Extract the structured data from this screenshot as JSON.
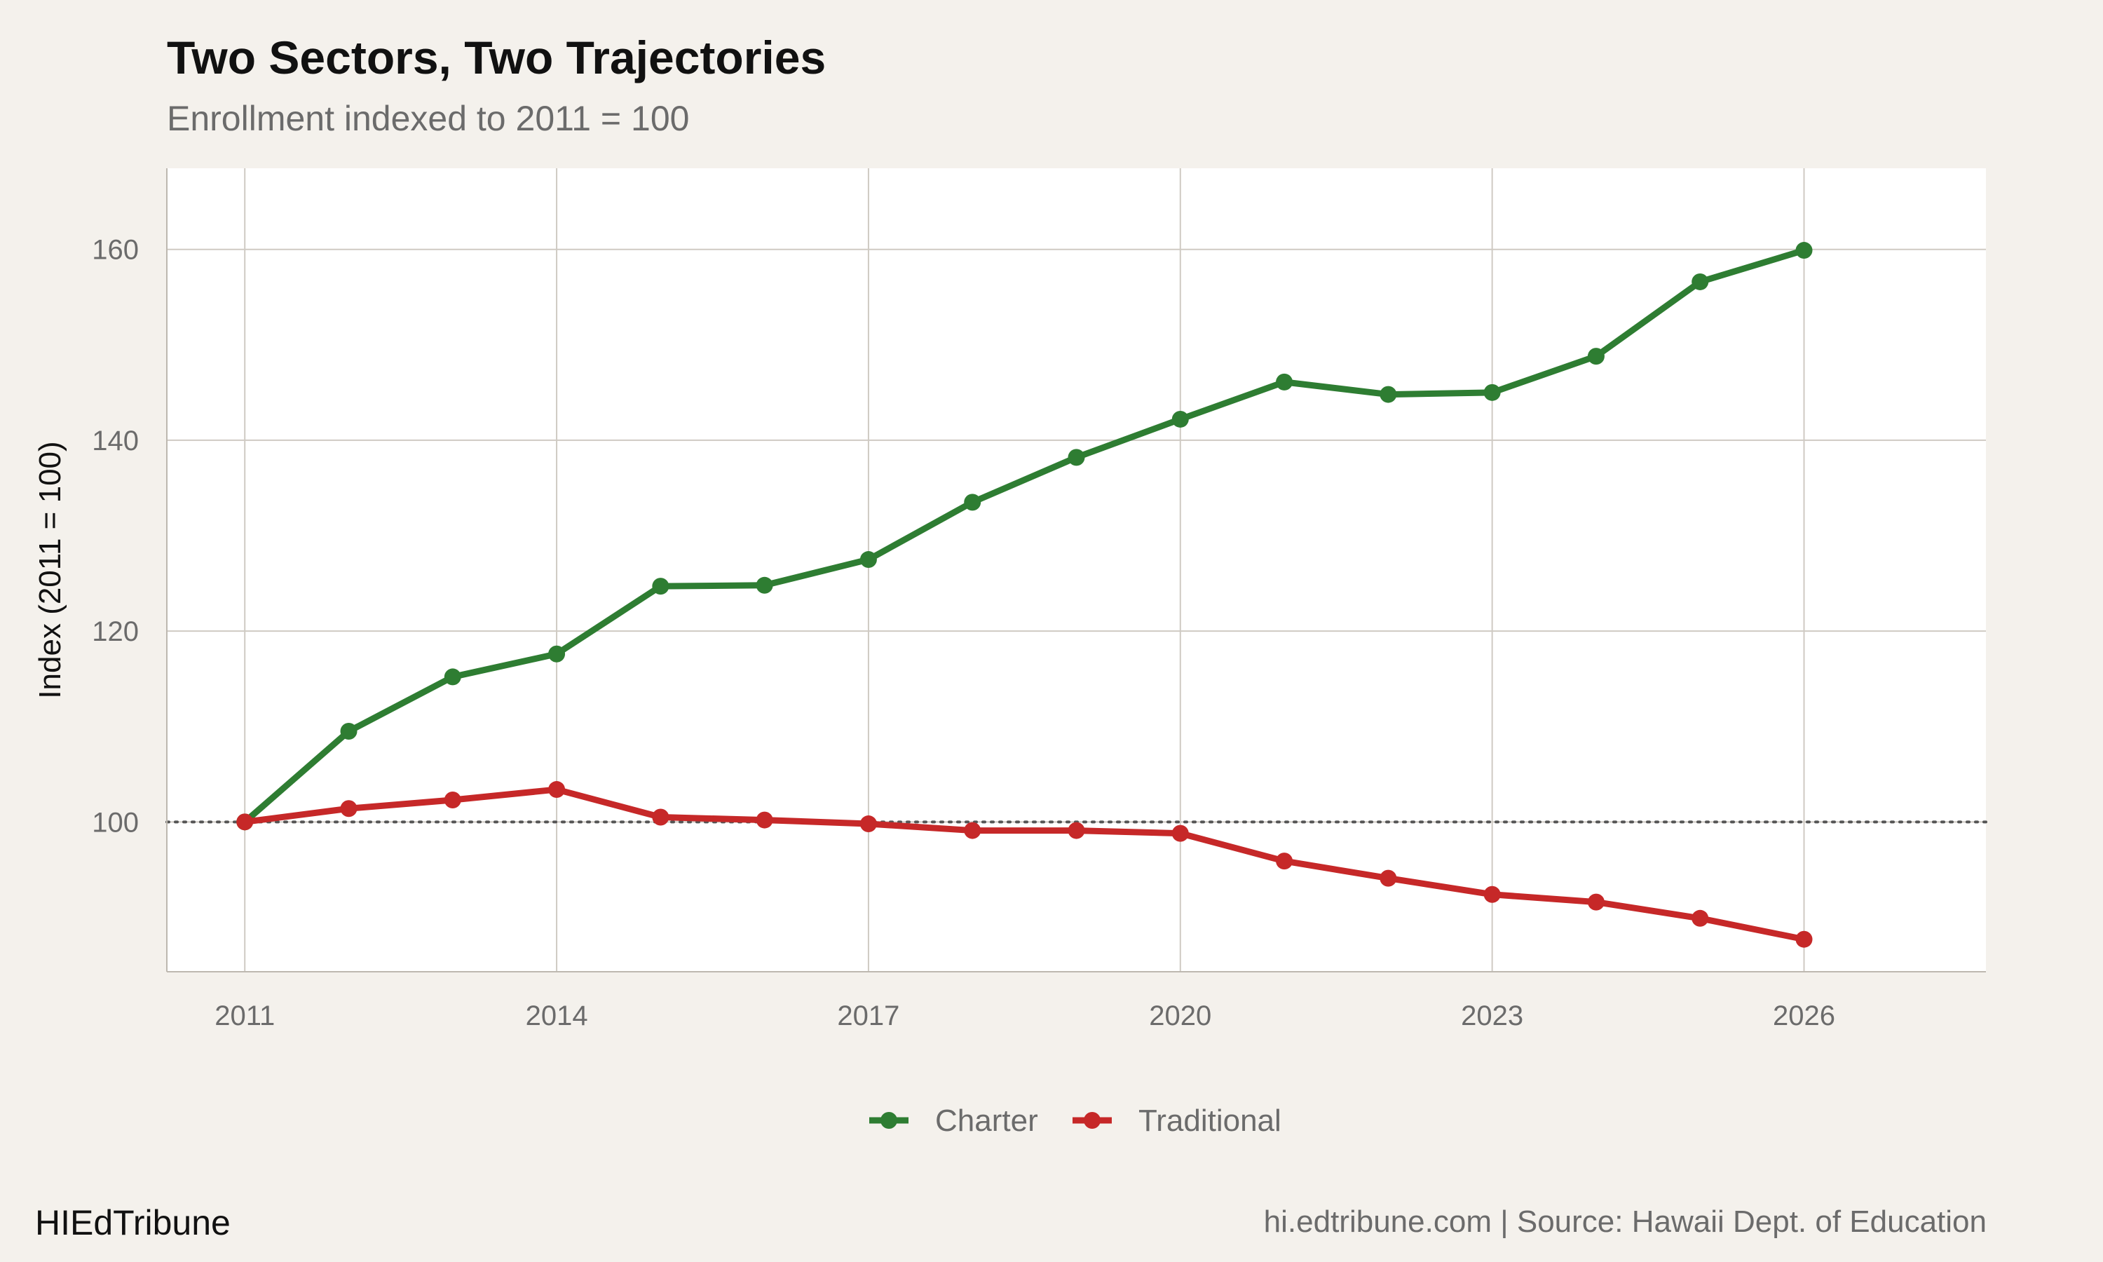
{
  "header": {
    "title": "Two Sectors, Two Trajectories",
    "subtitle": "Enrollment indexed to 2011 = 100"
  },
  "footer": {
    "brand": "HIEdTribune",
    "source": "hi.edtribune.com | Source: Hawaii Dept. of Education"
  },
  "colors": {
    "background": "#f4f1ec",
    "panel": "#ffffff",
    "grid": "#cfcac3",
    "charter": "#2e7d32",
    "traditional": "#c62828",
    "reference_line": "#555555"
  },
  "chart_data": {
    "type": "line",
    "title": "Two Sectors, Two Trajectories",
    "subtitle": "Enrollment indexed to 2011 = 100",
    "xlabel": "",
    "ylabel": "Index (2011 = 100)",
    "x": [
      2011,
      2012,
      2013,
      2014,
      2015,
      2016,
      2017,
      2018,
      2019,
      2020,
      2021,
      2022,
      2023,
      2024,
      2025,
      2026
    ],
    "x_ticks": [
      2011,
      2014,
      2017,
      2020,
      2023,
      2026
    ],
    "y_ticks": [
      100,
      120,
      140,
      160
    ],
    "xlim": [
      2010.25,
      2027.75
    ],
    "ylim": [
      84.3,
      168.5
    ],
    "reference_line": {
      "y": 100,
      "style": "dotted"
    },
    "grid": true,
    "legend": "bottom",
    "series": [
      {
        "name": "Charter",
        "color": "#2e7d32",
        "values": [
          100,
          109.5,
          115.2,
          117.6,
          124.7,
          124.8,
          127.5,
          133.5,
          138.2,
          142.2,
          146.1,
          144.8,
          145.0,
          148.8,
          156.6,
          159.9
        ]
      },
      {
        "name": "Traditional",
        "color": "#c62828",
        "values": [
          100,
          101.4,
          102.3,
          103.4,
          100.5,
          100.2,
          99.8,
          99.1,
          99.1,
          98.8,
          95.9,
          94.1,
          92.4,
          91.6,
          89.9,
          87.7
        ]
      }
    ]
  }
}
